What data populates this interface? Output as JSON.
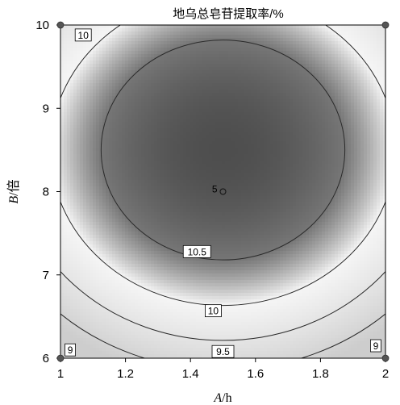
{
  "chart_data": {
    "type": "heatmap",
    "title": "地乌总皂苷提取率/%",
    "xlabel_italic": "A",
    "xlabel_unit": "/h",
    "ylabel_italic": "B",
    "ylabel_unit": "/倍",
    "xlim": [
      1,
      2
    ],
    "ylim": [
      6,
      10
    ],
    "x_ticks": [
      "1",
      "1.2",
      "1.4",
      "1.6",
      "1.8",
      "2"
    ],
    "y_ticks": [
      "6",
      "7",
      "8",
      "9",
      "10"
    ],
    "x_tick_values": [
      1,
      1.2,
      1.4,
      1.6,
      1.8,
      2
    ],
    "y_tick_values": [
      6,
      7,
      8,
      9,
      10
    ],
    "surface": {
      "center": [
        1.5,
        8.5
      ],
      "max_value": 11.0,
      "value_at": [
        {
          "x": 1.5,
          "y": 8.5,
          "z": 11.0
        },
        {
          "x": 1.5,
          "y": 7.18,
          "z": 10.5
        },
        {
          "x": 1.5,
          "y": 6.5,
          "z": 10.0
        },
        {
          "x": 1.5,
          "y": 6.0,
          "z": 9.6
        }
      ]
    },
    "contours": [
      {
        "level": 10.5,
        "label": "10.5",
        "label_at": [
          1.42,
          7.28
        ]
      },
      {
        "level": 10,
        "label": "10",
        "label_at": [
          1.47,
          6.57
        ]
      },
      {
        "level": 10,
        "label": "10",
        "label_at": [
          1.07,
          9.88
        ]
      },
      {
        "level": 9.5,
        "label": "9.5",
        "label_at": [
          1.5,
          6.08
        ]
      },
      {
        "level": 9,
        "label": "9",
        "label_at": [
          1.03,
          6.1
        ]
      },
      {
        "level": 9,
        "label": "9",
        "label_at": [
          1.97,
          6.15
        ]
      }
    ],
    "design_points": [
      {
        "x": 1,
        "y": 10
      },
      {
        "x": 2,
        "y": 10
      },
      {
        "x": 1,
        "y": 6
      },
      {
        "x": 2,
        "y": 6
      }
    ],
    "center_point": {
      "x": 1.5,
      "y": 8.0,
      "label": "5"
    }
  }
}
